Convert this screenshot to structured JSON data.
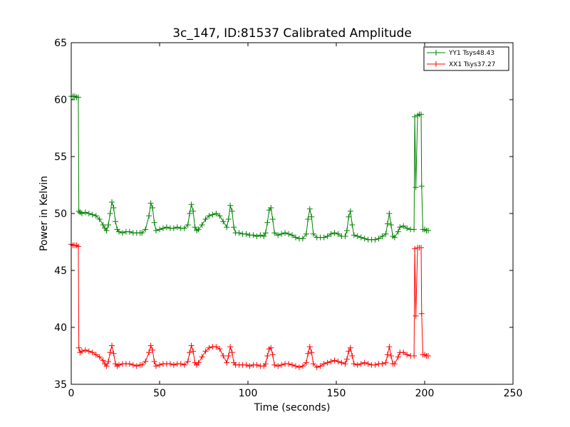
{
  "chart_data": {
    "type": "line",
    "title": "3c_147, ID:81537 Calibrated Amplitude",
    "xlabel": "Time (seconds)",
    "ylabel": "Power in Kelvin",
    "xlim": [
      0,
      250
    ],
    "ylim": [
      35,
      65
    ],
    "xticks": [
      0,
      50,
      100,
      150,
      200,
      250
    ],
    "yticks": [
      35,
      40,
      45,
      50,
      55,
      60,
      65
    ],
    "grid": false,
    "legend_position": "top-right",
    "marker": "+",
    "series": [
      {
        "name": "YY1 Tsys48.43",
        "color": "#008000",
        "points": [
          [
            0,
            60.3
          ],
          [
            1,
            60.3
          ],
          [
            2,
            60.3
          ],
          [
            3,
            60.2
          ],
          [
            4,
            60.2
          ],
          [
            4.3,
            50.2
          ],
          [
            5,
            50.1
          ],
          [
            6,
            50.0
          ],
          [
            8,
            50.1
          ],
          [
            10,
            50.0
          ],
          [
            12,
            49.9
          ],
          [
            14,
            49.8
          ],
          [
            16,
            49.5
          ],
          [
            18,
            49.0
          ],
          [
            19,
            48.7
          ],
          [
            20,
            48.5
          ],
          [
            21,
            49.0
          ],
          [
            22,
            50.0
          ],
          [
            23,
            51.0
          ],
          [
            24,
            50.5
          ],
          [
            25,
            49.3
          ],
          [
            26,
            48.6
          ],
          [
            27,
            48.4
          ],
          [
            29,
            48.3
          ],
          [
            31,
            48.4
          ],
          [
            33,
            48.4
          ],
          [
            35,
            48.3
          ],
          [
            37,
            48.3
          ],
          [
            39,
            48.3
          ],
          [
            40,
            48.3
          ],
          [
            42,
            48.6
          ],
          [
            44,
            49.8
          ],
          [
            45,
            50.9
          ],
          [
            46,
            50.5
          ],
          [
            47,
            49.2
          ],
          [
            48,
            48.5
          ],
          [
            50,
            48.6
          ],
          [
            52,
            48.7
          ],
          [
            54,
            48.8
          ],
          [
            56,
            48.7
          ],
          [
            58,
            48.7
          ],
          [
            60,
            48.8
          ],
          [
            62,
            48.7
          ],
          [
            64,
            48.7
          ],
          [
            66,
            49.0
          ],
          [
            67,
            50.0
          ],
          [
            68,
            50.8
          ],
          [
            69,
            50.2
          ],
          [
            70,
            48.8
          ],
          [
            71,
            48.5
          ],
          [
            72,
            48.6
          ],
          [
            74,
            49.0
          ],
          [
            76,
            49.5
          ],
          [
            78,
            49.8
          ],
          [
            80,
            49.9
          ],
          [
            82,
            50.0
          ],
          [
            84,
            49.8
          ],
          [
            86,
            49.3
          ],
          [
            88,
            48.8
          ],
          [
            89,
            49.5
          ],
          [
            90,
            50.7
          ],
          [
            91,
            50.2
          ],
          [
            92,
            48.8
          ],
          [
            93,
            48.3
          ],
          [
            95,
            48.3
          ],
          [
            97,
            48.2
          ],
          [
            99,
            48.2
          ],
          [
            101,
            48.1
          ],
          [
            103,
            48.1
          ],
          [
            105,
            48.0
          ],
          [
            107,
            48.1
          ],
          [
            109,
            48.0
          ],
          [
            110,
            48.3
          ],
          [
            111,
            49.2
          ],
          [
            112,
            50.3
          ],
          [
            113,
            50.5
          ],
          [
            114,
            49.5
          ],
          [
            115,
            48.3
          ],
          [
            117,
            48.1
          ],
          [
            119,
            48.2
          ],
          [
            121,
            48.3
          ],
          [
            123,
            48.2
          ],
          [
            125,
            48.1
          ],
          [
            127,
            47.9
          ],
          [
            129,
            47.8
          ],
          [
            131,
            47.8
          ],
          [
            133,
            48.2
          ],
          [
            134,
            49.5
          ],
          [
            135,
            50.4
          ],
          [
            136,
            49.7
          ],
          [
            137,
            48.2
          ],
          [
            139,
            47.9
          ],
          [
            141,
            47.9
          ],
          [
            143,
            47.9
          ],
          [
            145,
            48.0
          ],
          [
            147,
            48.2
          ],
          [
            149,
            48.3
          ],
          [
            151,
            48.2
          ],
          [
            153,
            48.0
          ],
          [
            155,
            48.0
          ],
          [
            156,
            48.5
          ],
          [
            157,
            49.7
          ],
          [
            158,
            50.2
          ],
          [
            159,
            49.0
          ],
          [
            160,
            48.1
          ],
          [
            162,
            48.0
          ],
          [
            164,
            47.9
          ],
          [
            166,
            47.8
          ],
          [
            168,
            47.7
          ],
          [
            170,
            47.7
          ],
          [
            172,
            47.7
          ],
          [
            174,
            47.8
          ],
          [
            176,
            48.0
          ],
          [
            178,
            48.2
          ],
          [
            179,
            49.1
          ],
          [
            180,
            50.0
          ],
          [
            181,
            49.0
          ],
          [
            182,
            48.0
          ],
          [
            183,
            47.9
          ],
          [
            185,
            48.4
          ],
          [
            186,
            48.8
          ],
          [
            188,
            48.9
          ],
          [
            190,
            48.7
          ],
          [
            192,
            48.6
          ],
          [
            194,
            48.6
          ],
          [
            194.4,
            58.5
          ],
          [
            195,
            52.3
          ],
          [
            196,
            58.6
          ],
          [
            197,
            58.7
          ],
          [
            198,
            58.7
          ],
          [
            198.3,
            52.4
          ],
          [
            199,
            48.6
          ],
          [
            200,
            48.6
          ],
          [
            201,
            48.5
          ],
          [
            202,
            48.5
          ]
        ]
      },
      {
        "name": "XX1 Tsys37.27",
        "color": "#ff0000",
        "points": [
          [
            0,
            47.3
          ],
          [
            1,
            47.2
          ],
          [
            2,
            47.2
          ],
          [
            3,
            47.2
          ],
          [
            4,
            47.1
          ],
          [
            4.3,
            38.2
          ],
          [
            5,
            37.8
          ],
          [
            6,
            37.9
          ],
          [
            8,
            38.0
          ],
          [
            10,
            37.9
          ],
          [
            12,
            37.8
          ],
          [
            14,
            37.6
          ],
          [
            16,
            37.4
          ],
          [
            18,
            37.1
          ],
          [
            19,
            36.8
          ],
          [
            20,
            36.6
          ],
          [
            21,
            37.0
          ],
          [
            22,
            37.8
          ],
          [
            23,
            38.4
          ],
          [
            24,
            37.7
          ],
          [
            25,
            36.8
          ],
          [
            26,
            36.6
          ],
          [
            27,
            36.7
          ],
          [
            29,
            36.8
          ],
          [
            31,
            36.8
          ],
          [
            33,
            36.8
          ],
          [
            35,
            36.7
          ],
          [
            37,
            36.6
          ],
          [
            39,
            36.7
          ],
          [
            40,
            36.7
          ],
          [
            42,
            37.0
          ],
          [
            44,
            37.8
          ],
          [
            45,
            38.4
          ],
          [
            46,
            38.0
          ],
          [
            47,
            37.0
          ],
          [
            48,
            36.6
          ],
          [
            50,
            36.7
          ],
          [
            52,
            36.8
          ],
          [
            54,
            36.8
          ],
          [
            56,
            36.8
          ],
          [
            58,
            36.7
          ],
          [
            60,
            36.8
          ],
          [
            62,
            36.8
          ],
          [
            64,
            36.7
          ],
          [
            66,
            37.0
          ],
          [
            67,
            37.8
          ],
          [
            68,
            38.4
          ],
          [
            69,
            37.9
          ],
          [
            70,
            36.9
          ],
          [
            71,
            36.7
          ],
          [
            72,
            36.9
          ],
          [
            74,
            37.4
          ],
          [
            76,
            37.9
          ],
          [
            78,
            38.2
          ],
          [
            80,
            38.3
          ],
          [
            82,
            38.3
          ],
          [
            84,
            38.1
          ],
          [
            86,
            37.5
          ],
          [
            88,
            36.9
          ],
          [
            89,
            37.5
          ],
          [
            90,
            38.3
          ],
          [
            91,
            37.8
          ],
          [
            92,
            36.9
          ],
          [
            93,
            36.7
          ],
          [
            95,
            36.7
          ],
          [
            97,
            36.7
          ],
          [
            99,
            36.7
          ],
          [
            101,
            36.6
          ],
          [
            103,
            36.7
          ],
          [
            105,
            36.7
          ],
          [
            107,
            36.6
          ],
          [
            109,
            36.6
          ],
          [
            110,
            36.8
          ],
          [
            111,
            37.5
          ],
          [
            112,
            38.1
          ],
          [
            113,
            38.2
          ],
          [
            114,
            37.6
          ],
          [
            115,
            36.7
          ],
          [
            117,
            36.6
          ],
          [
            119,
            36.7
          ],
          [
            121,
            36.8
          ],
          [
            123,
            36.8
          ],
          [
            125,
            36.7
          ],
          [
            127,
            36.6
          ],
          [
            129,
            36.5
          ],
          [
            131,
            36.6
          ],
          [
            133,
            36.9
          ],
          [
            134,
            37.7
          ],
          [
            135,
            38.3
          ],
          [
            136,
            37.8
          ],
          [
            137,
            36.8
          ],
          [
            139,
            36.5
          ],
          [
            141,
            36.6
          ],
          [
            143,
            36.8
          ],
          [
            145,
            36.9
          ],
          [
            147,
            37.0
          ],
          [
            149,
            37.1
          ],
          [
            151,
            37.0
          ],
          [
            153,
            36.9
          ],
          [
            155,
            36.8
          ],
          [
            156,
            37.2
          ],
          [
            157,
            37.9
          ],
          [
            158,
            38.2
          ],
          [
            159,
            37.5
          ],
          [
            160,
            36.8
          ],
          [
            162,
            36.7
          ],
          [
            164,
            36.8
          ],
          [
            166,
            36.9
          ],
          [
            168,
            36.8
          ],
          [
            170,
            36.7
          ],
          [
            172,
            36.7
          ],
          [
            174,
            36.8
          ],
          [
            176,
            36.8
          ],
          [
            178,
            36.9
          ],
          [
            179,
            37.6
          ],
          [
            180,
            38.3
          ],
          [
            181,
            37.5
          ],
          [
            182,
            36.8
          ],
          [
            183,
            36.8
          ],
          [
            185,
            37.4
          ],
          [
            186,
            37.8
          ],
          [
            188,
            37.8
          ],
          [
            190,
            37.6
          ],
          [
            192,
            37.5
          ],
          [
            194,
            37.5
          ],
          [
            194.4,
            46.9
          ],
          [
            195,
            41.0
          ],
          [
            196,
            47.0
          ],
          [
            197,
            47.0
          ],
          [
            198,
            47.0
          ],
          [
            198.3,
            41.2
          ],
          [
            199,
            37.6
          ],
          [
            200,
            37.6
          ],
          [
            201,
            37.5
          ],
          [
            202,
            37.5
          ]
        ]
      }
    ]
  }
}
